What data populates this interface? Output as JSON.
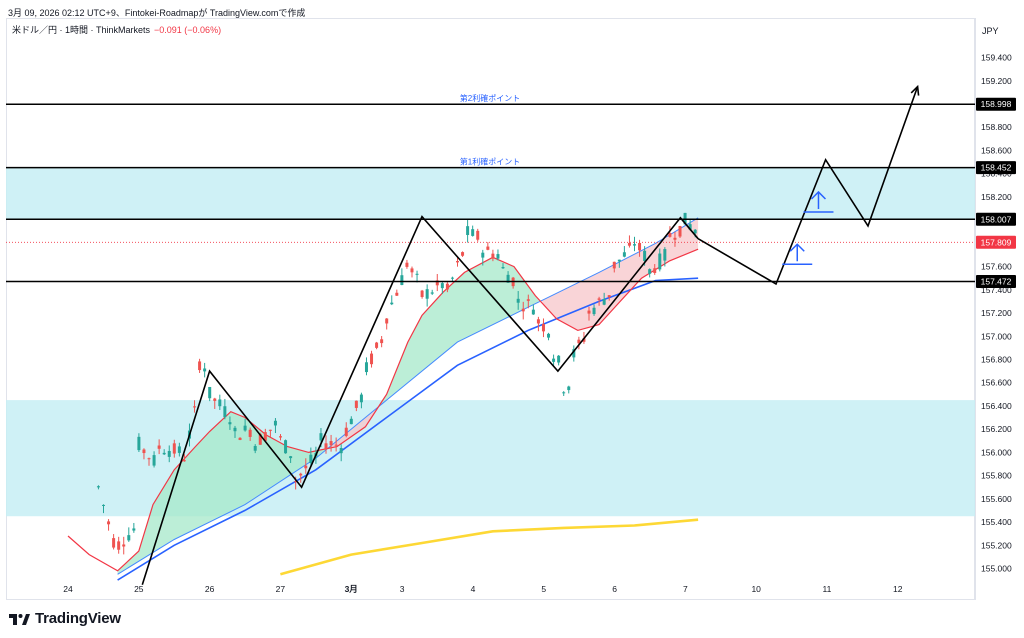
{
  "header": {
    "caption": "3月 09, 2026 02:12 UTC+9、Fintokei-Roadmapが TradingView.comで作成",
    "symbol": "米ドル／円 · 1時間 · ThinkMarkets",
    "change": "−0.091 (−0.06%)",
    "currency": "JPY"
  },
  "brand": {
    "name": "TradingView",
    "icon": "tradingview-logo-icon"
  },
  "colors": {
    "bull": "#26a69a",
    "bear": "#ef5350",
    "zone": "#c7eef5",
    "ma_fast": "#f23645",
    "ma_mid": "#2962ff",
    "ma_slow": "#fdd835",
    "price_line": "#f23645",
    "level": "#000000",
    "label_blue": "#2962ff"
  },
  "chart_data": {
    "type": "candlestick",
    "timeframe": "1時間",
    "ylim": [
      154.88,
      159.64
    ],
    "y_ticks": [
      "159.400",
      "159.200",
      "158.800",
      "158.600",
      "158.400",
      "158.200",
      "157.600",
      "157.400",
      "157.200",
      "157.000",
      "156.800",
      "156.600",
      "156.400",
      "156.200",
      "156.000",
      "155.800",
      "155.600",
      "155.400",
      "155.200",
      "155.000"
    ],
    "x_ticks": [
      {
        "label": "24",
        "day": 0
      },
      {
        "label": "25",
        "day": 1
      },
      {
        "label": "26",
        "day": 2
      },
      {
        "label": "27",
        "day": 3
      },
      {
        "label": "3月",
        "day": 4
      },
      {
        "label": "3",
        "day": 4.72
      },
      {
        "label": "4",
        "day": 5.72
      },
      {
        "label": "5",
        "day": 6.72
      },
      {
        "label": "6",
        "day": 7.72
      },
      {
        "label": "7",
        "day": 8.72
      },
      {
        "label": "10",
        "day": 9.72
      },
      {
        "label": "11",
        "day": 10.72
      },
      {
        "label": "12",
        "day": 11.72
      }
    ],
    "price_labels": [
      {
        "value": 158.998,
        "text": "158.998",
        "style": "level"
      },
      {
        "value": 158.452,
        "text": "158.452",
        "style": "level"
      },
      {
        "value": 158.007,
        "text": "158.007",
        "style": "level"
      },
      {
        "value": 157.809,
        "text": "157.809",
        "style": "price"
      },
      {
        "value": 157.472,
        "text": "157.472",
        "style": "level"
      }
    ],
    "levels": [
      {
        "value": 158.998,
        "text": "第2利確ポイント"
      },
      {
        "value": 158.452,
        "text": "第1利確ポイント"
      },
      {
        "value": 158.007,
        "text": ""
      },
      {
        "value": 157.472,
        "text": ""
      }
    ],
    "current_price": 157.809,
    "zones": [
      {
        "from": 158.007,
        "to": 158.452
      },
      {
        "from": 155.45,
        "to": 156.45
      }
    ],
    "anchors": [
      {
        "day": 0.43,
        "o": 155.78,
        "c": 155.7
      },
      {
        "day": 0.7,
        "o": 155.12,
        "c": 155.2
      },
      {
        "day": 0.95,
        "o": 155.35,
        "c": 156.1
      },
      {
        "day": 1.25,
        "o": 155.9,
        "c": 156.05
      },
      {
        "day": 1.6,
        "o": 156.0,
        "c": 155.85
      },
      {
        "day": 1.85,
        "o": 156.5,
        "c": 156.78
      },
      {
        "day": 2.0,
        "o": 156.7,
        "c": 156.5
      },
      {
        "day": 2.3,
        "o": 156.3,
        "c": 156.15
      },
      {
        "day": 2.6,
        "o": 156.2,
        "c": 156.05
      },
      {
        "day": 2.95,
        "o": 156.25,
        "c": 156.15
      },
      {
        "day": 3.2,
        "o": 155.95,
        "c": 155.75
      },
      {
        "day": 3.55,
        "o": 156.0,
        "c": 156.1
      },
      {
        "day": 3.9,
        "o": 156.05,
        "c": 156.15
      },
      {
        "day": 4.2,
        "o": 156.55,
        "c": 156.7
      },
      {
        "day": 4.45,
        "o": 157.0,
        "c": 157.1
      },
      {
        "day": 4.72,
        "o": 157.5,
        "c": 157.7
      },
      {
        "day": 5.0,
        "o": 157.4,
        "c": 157.35
      },
      {
        "day": 5.3,
        "o": 157.45,
        "c": 157.3
      },
      {
        "day": 5.6,
        "o": 157.75,
        "c": 157.9
      },
      {
        "day": 5.8,
        "o": 157.85,
        "c": 157.75
      },
      {
        "day": 6.1,
        "o": 157.7,
        "c": 157.6
      },
      {
        "day": 6.35,
        "o": 157.45,
        "c": 157.3
      },
      {
        "day": 6.6,
        "o": 157.25,
        "c": 157.15
      },
      {
        "day": 6.8,
        "o": 157.05,
        "c": 156.9
      },
      {
        "day": 6.95,
        "o": 156.75,
        "c": 156.55
      },
      {
        "day": 7.1,
        "o": 156.6,
        "c": 156.8
      },
      {
        "day": 7.35,
        "o": 157.05,
        "c": 157.2
      },
      {
        "day": 7.7,
        "o": 157.4,
        "c": 157.6
      },
      {
        "day": 7.95,
        "o": 157.75,
        "c": 157.85
      },
      {
        "day": 8.2,
        "o": 157.65,
        "c": 157.55
      },
      {
        "day": 8.45,
        "o": 157.7,
        "c": 157.85
      },
      {
        "day": 8.7,
        "o": 157.95,
        "c": 158.0
      },
      {
        "day": 8.9,
        "o": 157.9,
        "c": 157.82
      }
    ],
    "ema_fast": [
      {
        "day": 0.0,
        "v": 155.28
      },
      {
        "day": 0.3,
        "v": 155.12
      },
      {
        "day": 0.7,
        "v": 154.98
      },
      {
        "day": 1.0,
        "v": 155.15
      },
      {
        "day": 1.2,
        "v": 155.55
      },
      {
        "day": 1.5,
        "v": 155.85
      },
      {
        "day": 1.8,
        "v": 156.05
      },
      {
        "day": 2.0,
        "v": 156.18
      },
      {
        "day": 2.3,
        "v": 156.35
      },
      {
        "day": 2.5,
        "v": 156.3
      },
      {
        "day": 2.8,
        "v": 156.15
      },
      {
        "day": 3.1,
        "v": 156.05
      },
      {
        "day": 3.4,
        "v": 156.0
      },
      {
        "day": 3.8,
        "v": 156.05
      },
      {
        "day": 4.2,
        "v": 156.22
      },
      {
        "day": 4.5,
        "v": 156.5
      },
      {
        "day": 4.8,
        "v": 156.95
      },
      {
        "day": 5.0,
        "v": 157.18
      },
      {
        "day": 5.3,
        "v": 157.38
      },
      {
        "day": 5.6,
        "v": 157.55
      },
      {
        "day": 6.0,
        "v": 157.68
      },
      {
        "day": 6.3,
        "v": 157.6
      },
      {
        "day": 6.6,
        "v": 157.35
      },
      {
        "day": 6.9,
        "v": 157.15
      },
      {
        "day": 7.2,
        "v": 157.05
      },
      {
        "day": 7.5,
        "v": 157.1
      },
      {
        "day": 7.8,
        "v": 157.3
      },
      {
        "day": 8.1,
        "v": 157.5
      },
      {
        "day": 8.5,
        "v": 157.65
      },
      {
        "day": 8.9,
        "v": 157.75
      }
    ],
    "ema_mid": [
      {
        "day": 0.7,
        "v": 154.9
      },
      {
        "day": 1.5,
        "v": 155.2
      },
      {
        "day": 2.5,
        "v": 155.5
      },
      {
        "day": 3.5,
        "v": 155.85
      },
      {
        "day": 4.5,
        "v": 156.3
      },
      {
        "day": 5.5,
        "v": 156.75
      },
      {
        "day": 6.5,
        "v": 157.05
      },
      {
        "day": 7.5,
        "v": 157.3
      },
      {
        "day": 8.3,
        "v": 157.48
      },
      {
        "day": 8.9,
        "v": 157.5
      }
    ],
    "ema_mid2": [
      {
        "day": 0.7,
        "v": 154.95
      },
      {
        "day": 1.5,
        "v": 155.25
      },
      {
        "day": 2.5,
        "v": 155.55
      },
      {
        "day": 3.5,
        "v": 155.95
      },
      {
        "day": 4.5,
        "v": 156.45
      },
      {
        "day": 5.5,
        "v": 156.95
      },
      {
        "day": 6.5,
        "v": 157.25
      },
      {
        "day": 7.5,
        "v": 157.55
      },
      {
        "day": 8.3,
        "v": 157.8
      },
      {
        "day": 8.9,
        "v": 158.02
      }
    ],
    "ma_slow": [
      {
        "day": 3.0,
        "v": 154.95
      },
      {
        "day": 4.0,
        "v": 155.12
      },
      {
        "day": 5.0,
        "v": 155.22
      },
      {
        "day": 6.0,
        "v": 155.32
      },
      {
        "day": 7.0,
        "v": 155.35
      },
      {
        "day": 8.0,
        "v": 155.37
      },
      {
        "day": 8.9,
        "v": 155.42
      }
    ],
    "zigzag": [
      {
        "day": 1.05,
        "v": 154.86
      },
      {
        "day": 2.0,
        "v": 156.7
      },
      {
        "day": 3.3,
        "v": 155.7
      },
      {
        "day": 5.0,
        "v": 158.03
      },
      {
        "day": 6.92,
        "v": 156.7
      },
      {
        "day": 8.65,
        "v": 158.02
      },
      {
        "day": 8.9,
        "v": 157.84
      }
    ],
    "projection": [
      {
        "day": 8.9,
        "v": 157.84
      },
      {
        "day": 10.0,
        "v": 157.45
      },
      {
        "day": 10.7,
        "v": 158.52
      },
      {
        "day": 11.3,
        "v": 157.95
      },
      {
        "day": 12.0,
        "v": 159.15
      }
    ],
    "arrows": [
      {
        "day": 10.3,
        "v": 157.62
      },
      {
        "day": 10.6,
        "v": 158.07
      }
    ]
  }
}
